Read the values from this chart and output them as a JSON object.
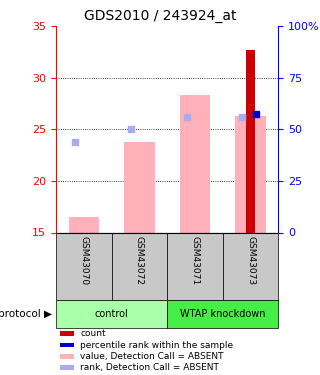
{
  "title": "GDS2010 / 243924_at",
  "samples": [
    "GSM43070",
    "GSM43072",
    "GSM43071",
    "GSM43073"
  ],
  "ylim_left": [
    15,
    35
  ],
  "ylim_right": [
    0,
    100
  ],
  "yticks_left": [
    15,
    20,
    25,
    30,
    35
  ],
  "yticks_right": [
    0,
    25,
    50,
    75,
    100
  ],
  "ytick_labels_right": [
    "0",
    "25",
    "50",
    "75",
    "100%"
  ],
  "value_absent": [
    16.5,
    23.8,
    28.3,
    26.3
  ],
  "rank_absent": [
    23.8,
    25.0,
    26.2,
    26.2
  ],
  "count_val": [
    null,
    null,
    null,
    32.7
  ],
  "percentile_rank": [
    null,
    null,
    null,
    26.5
  ],
  "bar_bottom": 15,
  "pink_color": "#FFB0B8",
  "light_blue_color": "#AAAAEE",
  "red_color": "#CC0000",
  "blue_color": "#0000CC",
  "dotted_yticks": [
    20,
    25,
    30
  ],
  "legend_items": [
    {
      "color": "#CC0000",
      "label": "count"
    },
    {
      "color": "#0000CC",
      "label": "percentile rank within the sample"
    },
    {
      "color": "#FFB0B8",
      "label": "value, Detection Call = ABSENT"
    },
    {
      "color": "#AAAAEE",
      "label": "rank, Detection Call = ABSENT"
    }
  ],
  "control_color": "#AAFFAA",
  "wtap_color": "#44EE44",
  "gray_color": "#C8C8C8"
}
